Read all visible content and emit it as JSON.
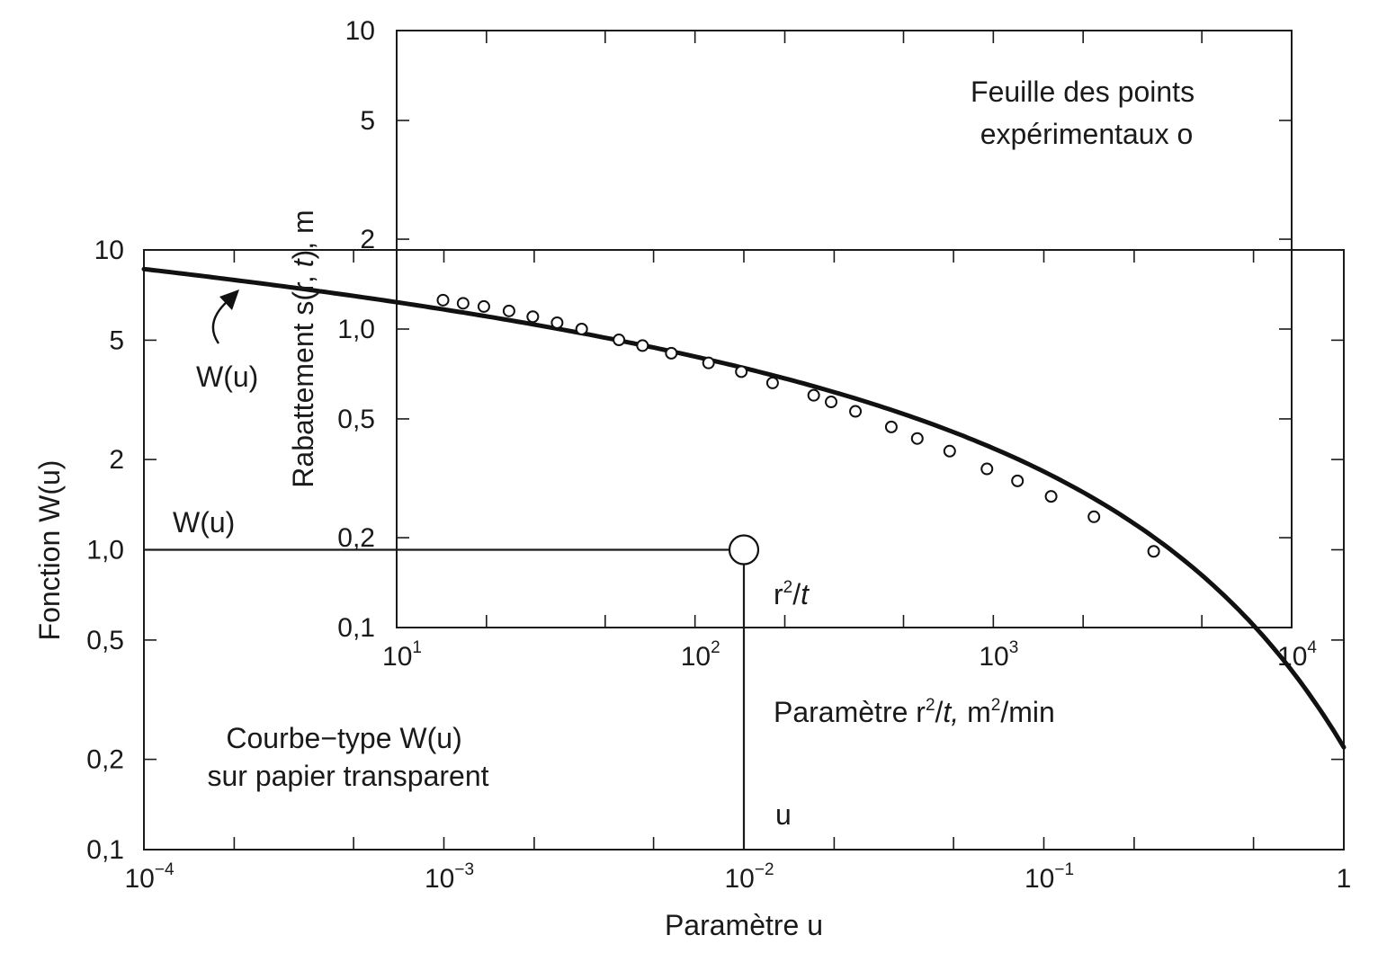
{
  "chart_data": {
    "type": "line",
    "title": "",
    "type_curve": {
      "name": "W(u)",
      "x_scale": "log",
      "y_scale": "log",
      "xlim": [
        0.0001,
        1
      ],
      "ylim": [
        0.1,
        10
      ],
      "xlabel": "Paramètre u",
      "ylabel": "Fonction W(u)",
      "x_ticks": [
        {
          "base": "10",
          "exp": "−4"
        },
        {
          "base": "10",
          "exp": "−3"
        },
        {
          "base": "10",
          "exp": "−2"
        },
        {
          "base": "10",
          "exp": "−1"
        },
        {
          "base": "1",
          "exp": ""
        }
      ],
      "y_ticks": [
        "0,1",
        "0,2",
        "0,5",
        "1,0",
        "2",
        "5",
        "10"
      ],
      "y_tick_values": [
        0.1,
        0.2,
        0.5,
        1,
        2,
        5,
        10
      ],
      "curve_label": "W(u)",
      "note_lines": [
        "Courbe−type W(u)",
        "sur papier transparent"
      ],
      "curve": {
        "u": [
          0.0001,
          0.0002,
          0.0005,
          0.001,
          0.002,
          0.005,
          0.01,
          0.02,
          0.05,
          0.1,
          0.2,
          0.3,
          0.5,
          0.7,
          1.0
        ],
        "W": [
          8.633,
          7.94,
          7.024,
          6.332,
          5.639,
          4.726,
          4.038,
          3.355,
          2.468,
          1.823,
          1.223,
          0.906,
          0.56,
          0.374,
          0.219
        ]
      }
    },
    "data_sheet": {
      "name": "o",
      "x_scale": "log",
      "y_scale": "log",
      "xlim": [
        10,
        10000
      ],
      "ylim": [
        0.1,
        10
      ],
      "xlabel": "Paramètre r²/t, m²/min",
      "xlabel_parts": {
        "a": "Paramètre r",
        "b": "2",
        "c": "/",
        "d": "t,",
        "e": " m",
        "f": "2",
        "g": "/min"
      },
      "ylabel": "Rabattement s(r, t), m",
      "ylabel_parts": {
        "a": "Rabattement ",
        "b": "s(r, ",
        "c": "t",
        "d": "), m"
      },
      "x_ticks": [
        {
          "base": "10",
          "exp": "1"
        },
        {
          "base": "10",
          "exp": "2"
        },
        {
          "base": "10",
          "exp": "3"
        },
        {
          "base": "10",
          "exp": "4"
        }
      ],
      "y_ticks": [
        "0,1",
        "0,2",
        "0,5",
        "1,0",
        "2",
        "5",
        "10"
      ],
      "y_tick_values": [
        0.1,
        0.2,
        0.5,
        1,
        2,
        5,
        10
      ],
      "note_lines": [
        "Feuille des points",
        "expérimentaux  o"
      ],
      "points": {
        "x": [
          14.3,
          16.7,
          19.6,
          23.8,
          28.6,
          34.5,
          41.7,
          55.6,
          66.7,
          83.3,
          111,
          143,
          182,
          250,
          286,
          345,
          455,
          556,
          714,
          952,
          1205,
          1562,
          2174,
          3448
        ],
        "s": [
          1.25,
          1.22,
          1.19,
          1.15,
          1.1,
          1.05,
          1.0,
          0.92,
          0.88,
          0.83,
          0.77,
          0.72,
          0.66,
          0.6,
          0.57,
          0.53,
          0.47,
          0.43,
          0.39,
          0.34,
          0.31,
          0.275,
          0.235,
          0.18
        ]
      }
    },
    "match_point": {
      "u": 0.01,
      "W": 1.0,
      "r2_over_t": 150,
      "s": 0.19,
      "label_u": "u",
      "label_W": "W(u)",
      "label_r2t": {
        "a": "r",
        "b": "2",
        "c": "/",
        "d": "t"
      }
    }
  }
}
